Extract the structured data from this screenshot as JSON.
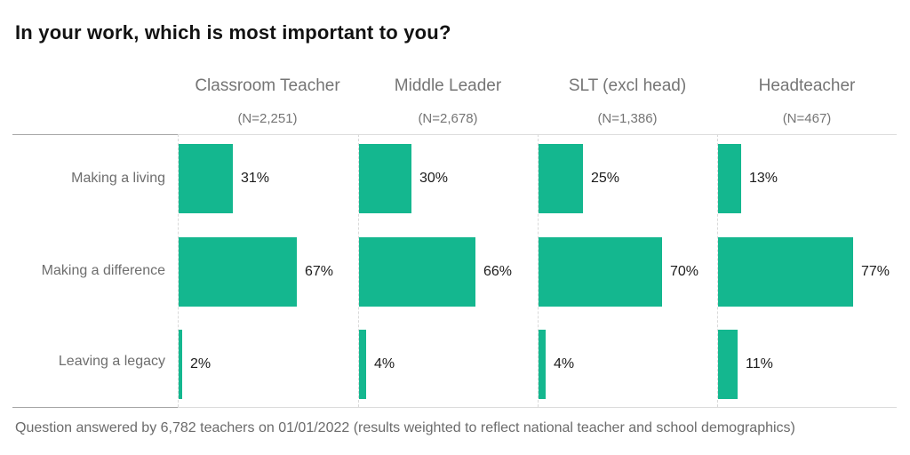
{
  "title": "In your work, which is most important to you?",
  "footer": {
    "note": "Question answered by 6,782 teachers on 01/01/2022 (results weighted to reflect national teacher and school demographics)"
  },
  "colors": {
    "bar": "#14b78f",
    "title_text": "#121212",
    "header_text": "#757575",
    "row_label_text": "#6e6e6e",
    "value_text": "#1c1c1c",
    "rule_light": "#dcdcdc",
    "rule_dark": "#a6a6a6",
    "grid_dashed": "#d9d9d9",
    "background": "#ffffff"
  },
  "chart_data": {
    "type": "bar",
    "orientation": "horizontal",
    "layout": "small-multiples",
    "title": "In your work, which is most important to you?",
    "categories": [
      "Making a living",
      "Making a difference",
      "Leaving a legacy"
    ],
    "series": [
      {
        "name": "Classroom Teacher",
        "n_label": "(N=2,251)",
        "values": [
          31,
          67,
          2
        ]
      },
      {
        "name": "Middle Leader",
        "n_label": "(N=2,678)",
        "values": [
          30,
          66,
          4
        ]
      },
      {
        "name": "SLT (excl head)",
        "n_label": "(N=1,386)",
        "values": [
          25,
          70,
          4
        ]
      },
      {
        "name": "Headteacher",
        "n_label": "(N=467)",
        "values": [
          13,
          77,
          11
        ]
      }
    ],
    "value_suffix": "%",
    "xlim": [
      0,
      100
    ],
    "grid": "dashed-vertical-axis-per-panel",
    "legend": "none"
  }
}
